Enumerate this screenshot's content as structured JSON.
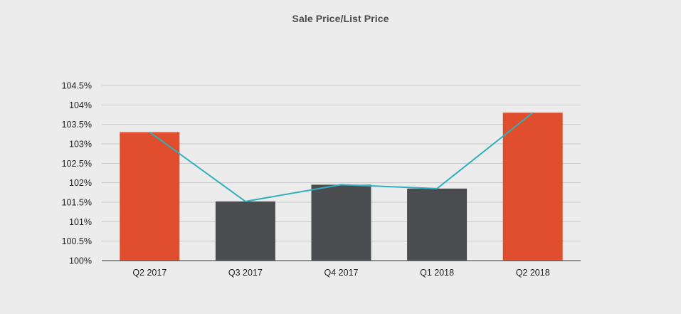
{
  "chart_data": {
    "type": "bar",
    "title": "Sale Price/List Price",
    "xlabel": "",
    "ylabel": "",
    "categories": [
      "Q2 2017",
      "Q3 2017",
      "Q4 2017",
      "Q1 2018",
      "Q2 2018"
    ],
    "values": [
      103.3,
      101.52,
      101.95,
      101.85,
      103.8
    ],
    "bar_colors": [
      "#e04e2e",
      "#4a4c4f",
      "#4a4c4f",
      "#4a4c4f",
      "#e04e2e"
    ],
    "line_series": {
      "values": [
        103.3,
        101.52,
        101.95,
        101.85,
        103.8
      ],
      "color": "#2fb0bd"
    },
    "ylim": [
      100,
      104.5
    ],
    "y_ticks": [
      100,
      100.5,
      101,
      101.5,
      102,
      102.5,
      103,
      103.5,
      104,
      104.5
    ],
    "y_tick_labels": [
      "100%",
      "100.5%",
      "101%",
      "101.5%",
      "102%",
      "102.5%",
      "103%",
      "103.5%",
      "104%",
      "104.5%"
    ],
    "grid": true,
    "legend": "none",
    "gridline_color": "#c8c8c8",
    "axis_color": "#333333"
  }
}
